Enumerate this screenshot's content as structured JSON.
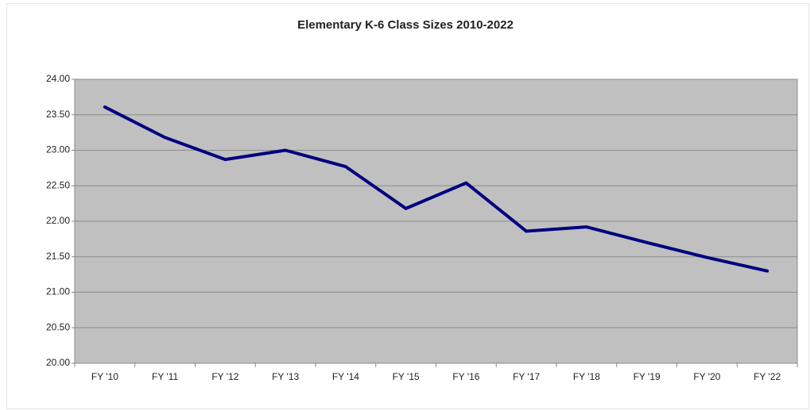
{
  "chart_data": {
    "type": "line",
    "title": "Elementary K-6 Class Sizes 2010-2022",
    "categories": [
      "FY '10",
      "FY '11",
      "FY '12",
      "FY '13",
      "FY '14",
      "FY '15",
      "FY '16",
      "FY '17",
      "FY '18",
      "FY '19",
      "FY '20",
      "FY '22"
    ],
    "values": [
      23.61,
      23.18,
      22.87,
      23.0,
      22.77,
      22.18,
      22.54,
      21.86,
      21.92,
      21.7,
      21.49,
      21.3
    ],
    "color": "#000080",
    "ylim": [
      20,
      24
    ],
    "yticks": [
      {
        "value": 20,
        "label": "20.00"
      },
      {
        "value": 20.5,
        "label": "20.50"
      },
      {
        "value": 21,
        "label": "21.00"
      },
      {
        "value": 21.5,
        "label": "21.50"
      },
      {
        "value": 22,
        "label": "22.00"
      },
      {
        "value": 22.5,
        "label": "22.50"
      },
      {
        "value": 23,
        "label": "23.00"
      },
      {
        "value": 23.5,
        "label": "23.50"
      },
      {
        "value": 24,
        "label": "24.00"
      }
    ],
    "grid": true
  }
}
